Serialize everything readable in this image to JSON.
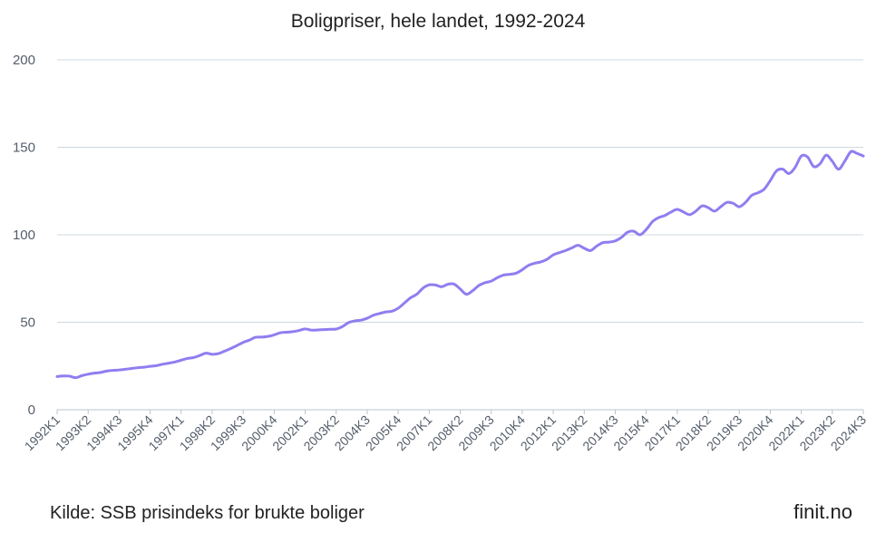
{
  "chart_data": {
    "type": "line",
    "title": "Boligpriser, hele landet, 1992-2024",
    "xlabel": "",
    "ylabel": "",
    "ylim": [
      0,
      200
    ],
    "yticks": [
      0,
      50,
      100,
      150,
      200
    ],
    "grid": true,
    "legend": "none",
    "line_color": "#8f7ef0",
    "x_tick_labels": [
      "1992K1",
      "1993K2",
      "1994K3",
      "1995K4",
      "1997K1",
      "1998K2",
      "1999K3",
      "2000K4",
      "2002K1",
      "2003K2",
      "2004K3",
      "2005K4",
      "2007K1",
      "2008K2",
      "2009K3",
      "2010K4",
      "2012K1",
      "2013K2",
      "2014K3",
      "2015K4",
      "2017K1",
      "2018K2",
      "2019K3",
      "2020K4",
      "2022K1",
      "2023K2",
      "2024K3"
    ],
    "x": [
      "1992K1",
      "1992K2",
      "1992K3",
      "1992K4",
      "1993K1",
      "1993K2",
      "1993K3",
      "1993K4",
      "1994K1",
      "1994K2",
      "1994K3",
      "1994K4",
      "1995K1",
      "1995K2",
      "1995K3",
      "1995K4",
      "1996K1",
      "1996K2",
      "1996K3",
      "1996K4",
      "1997K1",
      "1997K2",
      "1997K3",
      "1997K4",
      "1998K1",
      "1998K2",
      "1998K3",
      "1998K4",
      "1999K1",
      "1999K2",
      "1999K3",
      "1999K4",
      "2000K1",
      "2000K2",
      "2000K3",
      "2000K4",
      "2001K1",
      "2001K2",
      "2001K3",
      "2001K4",
      "2002K1",
      "2002K2",
      "2002K3",
      "2002K4",
      "2003K1",
      "2003K2",
      "2003K3",
      "2003K4",
      "2004K1",
      "2004K2",
      "2004K3",
      "2004K4",
      "2005K1",
      "2005K2",
      "2005K3",
      "2005K4",
      "2006K1",
      "2006K2",
      "2006K3",
      "2006K4",
      "2007K1",
      "2007K2",
      "2007K3",
      "2007K4",
      "2008K1",
      "2008K2",
      "2008K3",
      "2008K4",
      "2009K1",
      "2009K2",
      "2009K3",
      "2009K4",
      "2010K1",
      "2010K2",
      "2010K3",
      "2010K4",
      "2011K1",
      "2011K2",
      "2011K3",
      "2011K4",
      "2012K1",
      "2012K2",
      "2012K3",
      "2012K4",
      "2013K1",
      "2013K2",
      "2013K3",
      "2013K4",
      "2014K1",
      "2014K2",
      "2014K3",
      "2014K4",
      "2015K1",
      "2015K2",
      "2015K3",
      "2015K4",
      "2016K1",
      "2016K2",
      "2016K3",
      "2016K4",
      "2017K1",
      "2017K2",
      "2017K3",
      "2017K4",
      "2018K1",
      "2018K2",
      "2018K3",
      "2018K4",
      "2019K1",
      "2019K2",
      "2019K3",
      "2019K4",
      "2020K1",
      "2020K2",
      "2020K3",
      "2020K4",
      "2021K1",
      "2021K2",
      "2021K3",
      "2021K4",
      "2022K1",
      "2022K2",
      "2022K3",
      "2022K4",
      "2023K1",
      "2023K2",
      "2023K3",
      "2023K4",
      "2024K1",
      "2024K2",
      "2024K3"
    ],
    "series": [
      {
        "values": [
          19.0,
          19.3,
          19.2,
          18.3,
          19.5,
          20.3,
          20.9,
          21.3,
          22.1,
          22.5,
          22.7,
          23.1,
          23.6,
          24.0,
          24.3,
          24.8,
          25.2,
          26.0,
          26.6,
          27.3,
          28.3,
          29.3,
          29.8,
          31.0,
          32.3,
          31.7,
          32.1,
          33.5,
          35.0,
          36.7,
          38.5,
          39.8,
          41.4,
          41.5,
          41.9,
          42.8,
          44.0,
          44.3,
          44.6,
          45.3,
          46.2,
          45.5,
          45.6,
          45.8,
          46.0,
          46.1,
          47.5,
          49.8,
          50.8,
          51.2,
          52.3,
          54.0,
          55.0,
          55.9,
          56.3,
          58.0,
          61.0,
          64.0,
          66.0,
          69.5,
          71.4,
          71.3,
          70.3,
          71.7,
          71.8,
          69.0,
          66.0,
          68.0,
          71.0,
          72.6,
          73.5,
          75.5,
          77.0,
          77.4,
          78.0,
          80.0,
          82.5,
          83.7,
          84.5,
          86.0,
          88.5,
          89.8,
          91.0,
          92.5,
          94.0,
          92.3,
          91.0,
          93.5,
          95.5,
          95.8,
          96.5,
          98.5,
          101.5,
          102.0,
          100.0,
          103.0,
          107.5,
          109.8,
          111.0,
          113.0,
          114.5,
          113.0,
          111.5,
          113.5,
          116.5,
          115.5,
          113.5,
          116.0,
          118.5,
          118.0,
          116.0,
          118.5,
          122.5,
          124.0,
          126.0,
          131.0,
          136.5,
          137.5,
          135.0,
          138.5,
          145.0,
          144.5,
          139.0,
          140.5,
          145.5,
          142.0,
          137.5,
          142.0,
          147.5,
          146.5,
          145.0
        ]
      }
    ]
  },
  "footer": {
    "source": "Kilde: SSB prisindeks for brukte boliger",
    "brand": "finit.no"
  }
}
